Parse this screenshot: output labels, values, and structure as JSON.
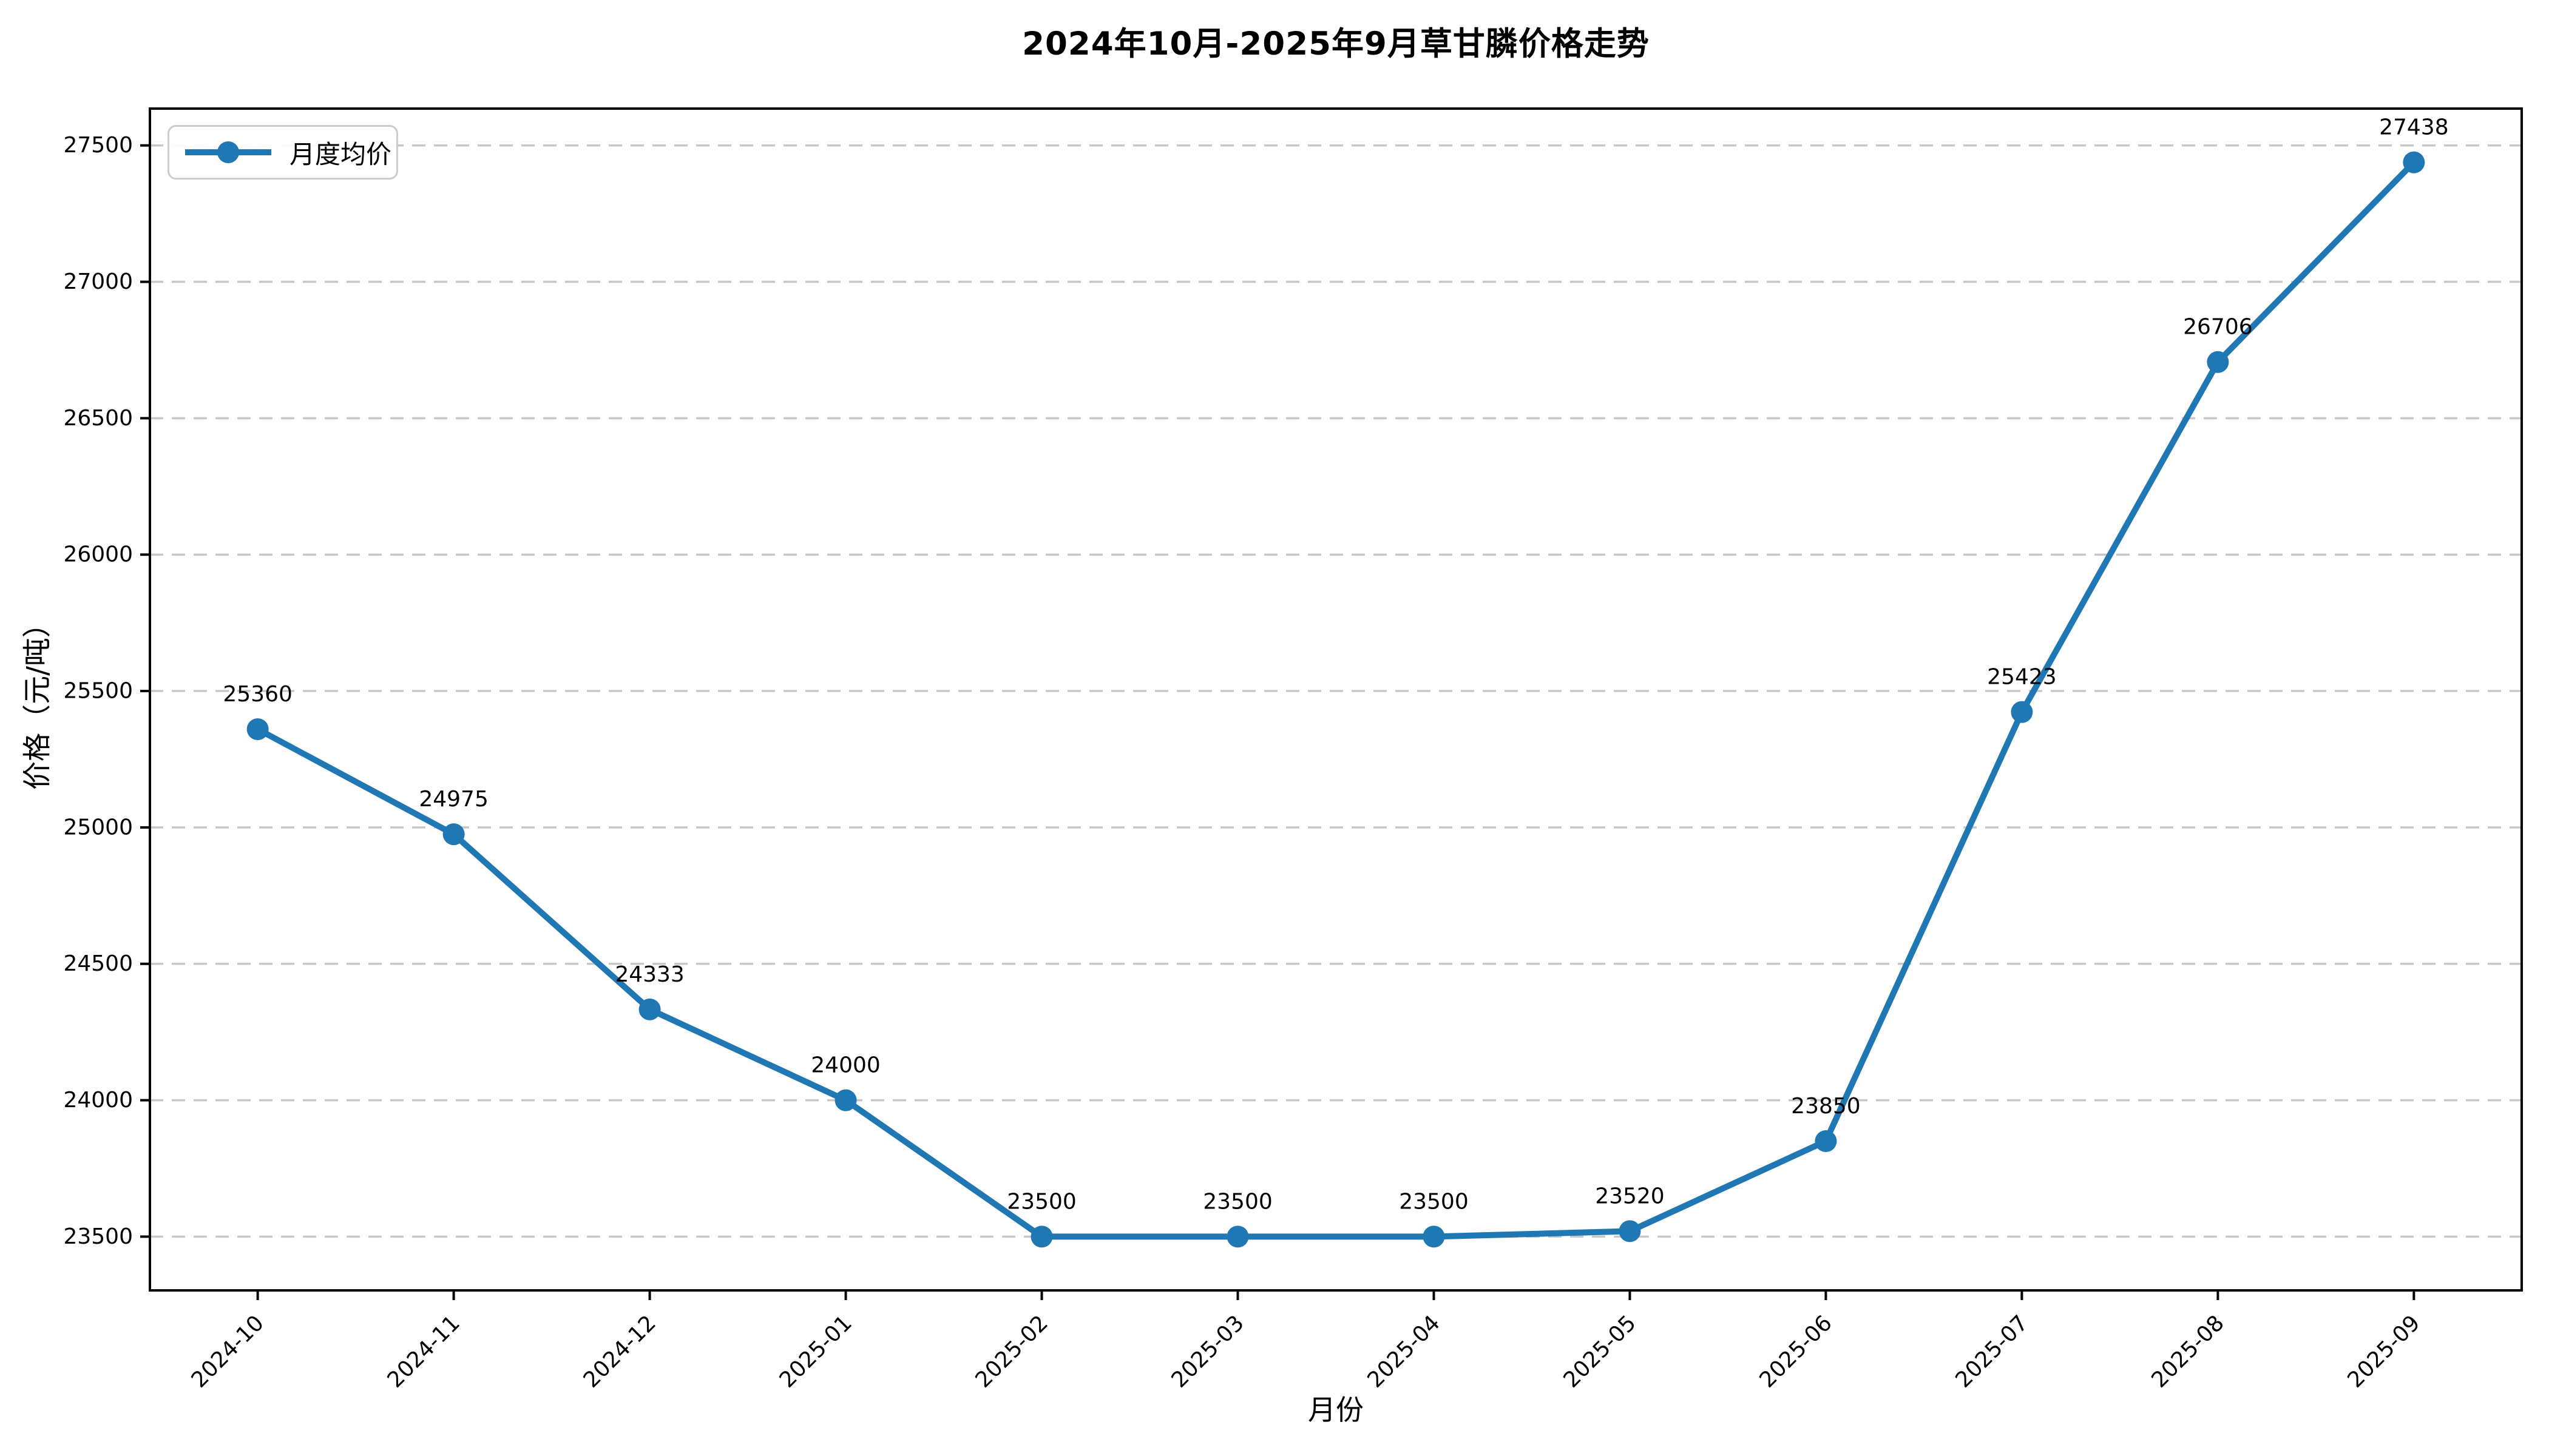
{
  "title": "2024年10月-2025年9月草甘膦价格走势",
  "chart_data": {
    "type": "line",
    "title": "2024年10月-2025年9月草甘膦价格走势",
    "xlabel": "月份",
    "ylabel": "价格（元/吨）",
    "legend": {
      "label": "月度均价",
      "position": "upper left"
    },
    "categories": [
      "2024-10",
      "2024-11",
      "2024-12",
      "2025-01",
      "2025-02",
      "2025-03",
      "2025-04",
      "2025-05",
      "2025-06",
      "2025-07",
      "2025-08",
      "2025-09"
    ],
    "series": [
      {
        "name": "月度均价",
        "values": [
          25360,
          24975,
          24333,
          24000,
          23500,
          23500,
          23500,
          23520,
          23850,
          25423,
          26706,
          27438
        ]
      }
    ],
    "yticks": [
      23500,
      24000,
      24500,
      25000,
      25500,
      26000,
      26500,
      27000,
      27500
    ],
    "ylim": [
      23303,
      27635
    ],
    "x_tick_rotation": 45,
    "grid": "horizontal-dashed",
    "show_value_labels": true,
    "marker": "circle",
    "colors": {
      "line": "#1f77b4",
      "marker": "#1f77b4",
      "grid": "#c7c7c7",
      "text": "#000000",
      "spine": "#000000",
      "legend_border": "#cccccc"
    }
  }
}
